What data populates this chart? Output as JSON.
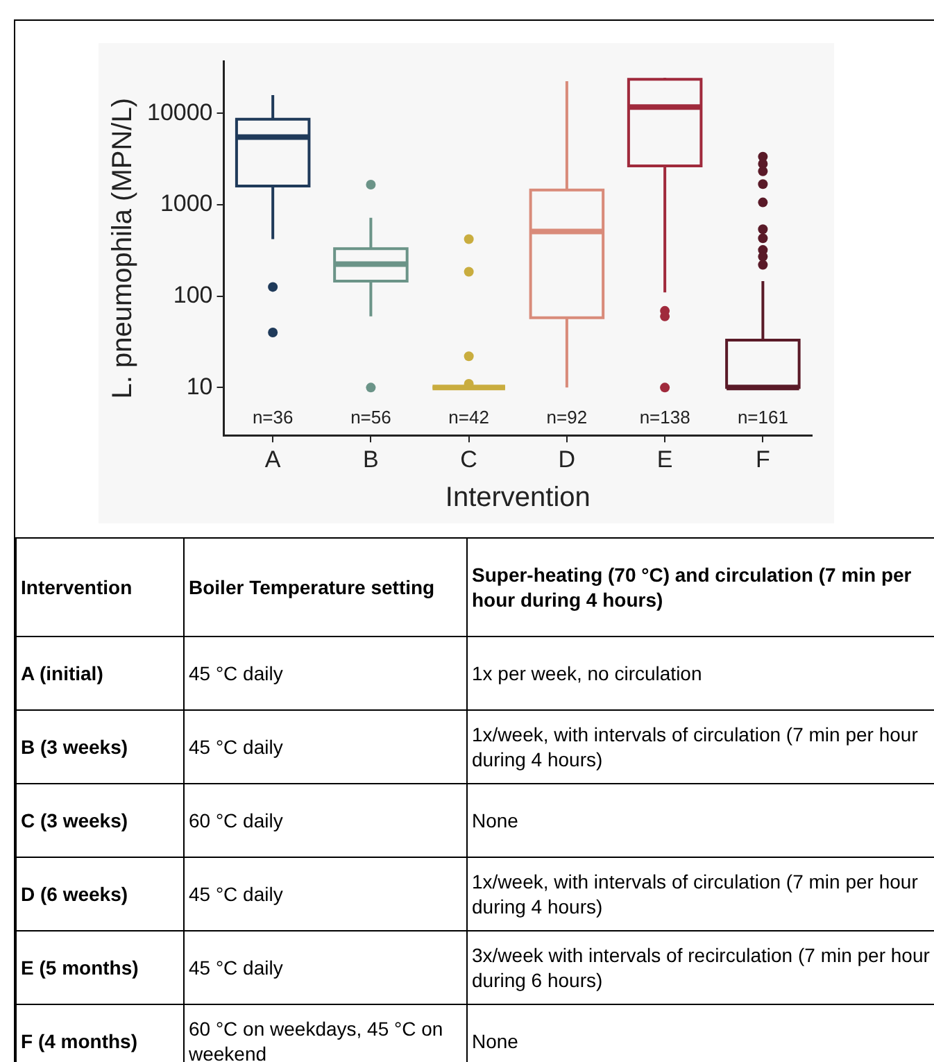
{
  "chart_data": [
    {
      "type": "box",
      "xlabel": "Intervention",
      "ylabel": "L. pneumophila (MPN/L)",
      "categories": [
        "A",
        "B",
        "C",
        "D",
        "E",
        "F"
      ],
      "colors": [
        "#1f3a5a",
        "#6b9488",
        "#c9ad3f",
        "#d98b7a",
        "#a02a3c",
        "#5a1a28"
      ],
      "boxes": [
        {
          "low": 420,
          "q1": 1600,
          "median": 5500,
          "q3": 8600,
          "high": 15800,
          "outliers": [
            126,
            40
          ]
        },
        {
          "low": 60,
          "q1": 146,
          "median": 224,
          "q3": 330,
          "high": 720,
          "outliers": [
            1660,
            10
          ]
        },
        {
          "low": 10,
          "q1": 10,
          "median": 10,
          "q3": 10,
          "high": 10,
          "outliers": [
            420,
            185,
            22,
            11
          ]
        },
        {
          "low": 10,
          "q1": 58,
          "median": 510,
          "q3": 1450,
          "high": 22400
        },
        {
          "low": 110,
          "q1": 2660,
          "median": 11700,
          "q3": 23500,
          "high": 24500,
          "outliers": [
            69,
            60,
            10
          ]
        },
        {
          "low": 10,
          "q1": 10,
          "median": 10,
          "q3": 33,
          "high": 146,
          "outliers": [
            3350,
            2800,
            2320,
            1680,
            1060,
            540,
            430,
            320,
            270,
            220
          ]
        }
      ],
      "log": true,
      "grid": false,
      "legend": false,
      "ylim": [
        3,
        37000
      ],
      "yticks": [
        10,
        100,
        1000,
        10000
      ],
      "annotations": [
        "n=36",
        "n=56",
        "n=42",
        "n=92",
        "n=138",
        "n=161"
      ]
    },
    {
      "type": "other",
      "categories": [
        "Intervention",
        "Boiler Temperature setting",
        "Super-heating (70 °C) and circulation (7 min per hour during 4 hours)"
      ],
      "y_categories": [
        "A (initial)",
        "B (3 weeks)",
        "C (3 weeks)",
        "D (6 weeks)",
        "E (5 months)",
        "F (4 months)"
      ],
      "annotations": [
        "45 °C daily",
        "1x per week, no circulation",
        "45 °C daily",
        "1x/week, with intervals of circulation (7 min per hour during 4 hours)",
        "60 °C daily",
        "None",
        "45 °C daily",
        "1x/week, with intervals of circulation (7 min per hour during 4 hours)",
        "45 °C daily",
        "3x/week with intervals of recirculation (7 min per hour during 6 hours)",
        "60 °C on weekdays, 45 °C on weekend",
        "None"
      ]
    }
  ]
}
